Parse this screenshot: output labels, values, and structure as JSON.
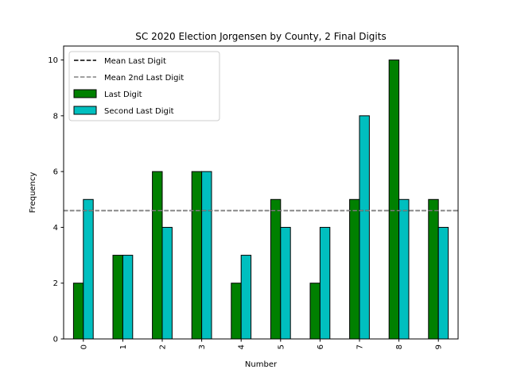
{
  "chart_data": {
    "type": "bar",
    "title": "SC 2020 Election Jorgensen by County, 2 Final Digits",
    "xlabel": "Number",
    "ylabel": "Frequency",
    "categories": [
      "0",
      "1",
      "2",
      "3",
      "4",
      "5",
      "6",
      "7",
      "8",
      "9"
    ],
    "ylim": [
      0,
      10.5
    ],
    "yticks": [
      0,
      2,
      4,
      6,
      8,
      10
    ],
    "series": [
      {
        "name": "Last Digit",
        "color": "#008000",
        "values": [
          2,
          3,
          6,
          6,
          2,
          5,
          2,
          5,
          10,
          5
        ]
      },
      {
        "name": "Second Last Digit",
        "color": "#00bfbf",
        "values": [
          5,
          3,
          4,
          6,
          3,
          4,
          4,
          8,
          5,
          4
        ]
      }
    ],
    "reference_lines": [
      {
        "name": "Mean Last Digit",
        "value": 4.6,
        "color": "#000000",
        "style": "dashed"
      },
      {
        "name": "Mean 2nd Last Digit",
        "value": 4.6,
        "color": "#808080",
        "style": "dashed"
      }
    ],
    "legend": "top-left",
    "grid": false
  }
}
